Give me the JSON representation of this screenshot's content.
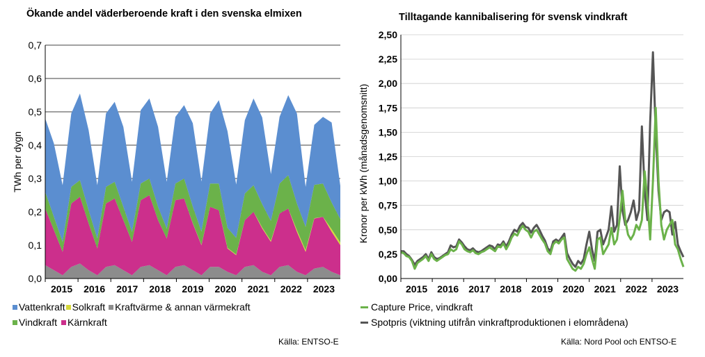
{
  "left": {
    "title": "Ökande andel väderberoende kraft i den svenska elmixen",
    "source": "Källa: ENTSO-E",
    "legend": [
      {
        "label": "Vattenkraft",
        "color": "#5b8ed0"
      },
      {
        "label": "Solkraft",
        "color": "#d6d83c"
      },
      {
        "label": "Kraftvärme & annan värmekraft",
        "color": "#8c8c8c"
      },
      {
        "label": "Vindkraft",
        "color": "#6bb24a"
      },
      {
        "label": "Kärnkraft",
        "color": "#cc2f8c"
      }
    ]
  },
  "right": {
    "title": "Tilltagande kannibalisering för svensk vindkraft",
    "source": "Källa: Nord Pool och ENTSO-E",
    "legend": [
      {
        "label": "Capture Price, vindkraft",
        "color": "#6bb24a"
      },
      {
        "label": "Spotpris (viktning utifrån vinkraftproduktionen i elområdena)",
        "color": "#555555"
      }
    ]
  },
  "chart_data": [
    {
      "type": "area",
      "stacked": true,
      "ylabel": "TWh per dygn",
      "ylim": [
        0,
        0.7
      ],
      "yticks": [
        "0,0",
        "0,1",
        "0,2",
        "0,3",
        "0,4",
        "0,5",
        "0,6",
        "0,7"
      ],
      "x_tick_labels": [
        "2015",
        "2016",
        "2017",
        "2018",
        "2019",
        "2020",
        "2021",
        "2022",
        "2023"
      ],
      "grid": true,
      "x": [
        "2015-Q1",
        "2015-Q2",
        "2015-Q3",
        "2015-Q4",
        "2016-Q1",
        "2016-Q2",
        "2016-Q3",
        "2016-Q4",
        "2017-Q1",
        "2017-Q2",
        "2017-Q3",
        "2017-Q4",
        "2018-Q1",
        "2018-Q2",
        "2018-Q3",
        "2018-Q4",
        "2019-Q1",
        "2019-Q2",
        "2019-Q3",
        "2019-Q4",
        "2020-Q1",
        "2020-Q2",
        "2020-Q3",
        "2020-Q4",
        "2021-Q1",
        "2021-Q2",
        "2021-Q3",
        "2021-Q4",
        "2022-Q1",
        "2022-Q2",
        "2022-Q3",
        "2022-Q4",
        "2023-Q1",
        "2023-Q2",
        "2023-Q3"
      ],
      "series": [
        {
          "name": "Kraftvärme & annan värmekraft",
          "values": [
            0.04,
            0.025,
            0.01,
            0.035,
            0.045,
            0.025,
            0.01,
            0.035,
            0.04,
            0.025,
            0.01,
            0.035,
            0.04,
            0.025,
            0.01,
            0.035,
            0.04,
            0.025,
            0.01,
            0.035,
            0.035,
            0.02,
            0.01,
            0.035,
            0.04,
            0.02,
            0.01,
            0.035,
            0.04,
            0.02,
            0.01,
            0.03,
            0.035,
            0.02,
            0.01
          ]
        },
        {
          "name": "Kärnkraft",
          "values": [
            0.17,
            0.12,
            0.07,
            0.19,
            0.2,
            0.14,
            0.08,
            0.19,
            0.2,
            0.15,
            0.1,
            0.2,
            0.21,
            0.15,
            0.11,
            0.2,
            0.2,
            0.14,
            0.09,
            0.18,
            0.17,
            0.07,
            0.06,
            0.14,
            0.16,
            0.13,
            0.1,
            0.16,
            0.17,
            0.12,
            0.07,
            0.15,
            0.15,
            0.12,
            0.09
          ]
        },
        {
          "name": "Solkraft",
          "values": [
            0,
            0,
            0,
            0,
            0,
            0,
            0,
            0,
            0,
            0,
            0,
            0,
            0,
            0,
            0,
            0,
            0,
            0.001,
            0.001,
            0,
            0,
            0.002,
            0.002,
            0,
            0,
            0.003,
            0.003,
            0,
            0,
            0.005,
            0.005,
            0.001,
            0,
            0.008,
            0.008
          ]
        },
        {
          "name": "Vindkraft",
          "values": [
            0.05,
            0.04,
            0.03,
            0.05,
            0.05,
            0.04,
            0.03,
            0.05,
            0.05,
            0.04,
            0.03,
            0.05,
            0.05,
            0.04,
            0.03,
            0.05,
            0.06,
            0.05,
            0.04,
            0.07,
            0.08,
            0.06,
            0.05,
            0.08,
            0.08,
            0.07,
            0.06,
            0.09,
            0.1,
            0.08,
            0.07,
            0.1,
            0.1,
            0.08,
            0.07
          ]
        },
        {
          "name": "Vattenkraft",
          "values": [
            0.22,
            0.22,
            0.17,
            0.22,
            0.26,
            0.24,
            0.16,
            0.22,
            0.24,
            0.24,
            0.15,
            0.22,
            0.24,
            0.24,
            0.14,
            0.2,
            0.22,
            0.25,
            0.15,
            0.21,
            0.25,
            0.29,
            0.16,
            0.22,
            0.26,
            0.26,
            0.14,
            0.2,
            0.24,
            0.27,
            0.12,
            0.18,
            0.2,
            0.24,
            0.1
          ]
        }
      ]
    },
    {
      "type": "line",
      "ylabel": "Kronor per kWh (månadsgenomsnitt)",
      "ylim": [
        0,
        2.5
      ],
      "yticks": [
        "0,00",
        "0,25",
        "0,50",
        "0,75",
        "1,00",
        "1,25",
        "1,50",
        "1,75",
        "2,00",
        "2,25",
        "2,50"
      ],
      "x_tick_labels": [
        "2015",
        "2016",
        "2017",
        "2018",
        "2019",
        "2020",
        "2021",
        "2022",
        "2023"
      ],
      "grid": true,
      "x_start": "2015-01",
      "x_step": "month",
      "series": [
        {
          "name": "Capture Price, vindkraft",
          "values": [
            0.27,
            0.26,
            0.23,
            0.22,
            0.18,
            0.1,
            0.16,
            0.18,
            0.2,
            0.23,
            0.18,
            0.25,
            0.2,
            0.18,
            0.2,
            0.22,
            0.24,
            0.25,
            0.3,
            0.28,
            0.3,
            0.38,
            0.35,
            0.3,
            0.28,
            0.27,
            0.29,
            0.26,
            0.25,
            0.27,
            0.28,
            0.3,
            0.32,
            0.3,
            0.28,
            0.33,
            0.32,
            0.36,
            0.3,
            0.35,
            0.42,
            0.46,
            0.44,
            0.5,
            0.54,
            0.5,
            0.48,
            0.42,
            0.48,
            0.5,
            0.45,
            0.4,
            0.36,
            0.28,
            0.25,
            0.35,
            0.38,
            0.36,
            0.4,
            0.42,
            0.2,
            0.15,
            0.1,
            0.08,
            0.12,
            0.1,
            0.15,
            0.25,
            0.32,
            0.2,
            0.1,
            0.4,
            0.42,
            0.25,
            0.3,
            0.35,
            0.52,
            0.35,
            0.4,
            0.62,
            0.9,
            0.6,
            0.45,
            0.4,
            0.45,
            0.55,
            0.5,
            0.6,
            1.1,
            0.8,
            0.4,
            1.0,
            1.75,
            1.0,
            0.55,
            0.4,
            0.5,
            0.55,
            0.6,
            0.35,
            0.3,
            0.2,
            0.12
          ]
        },
        {
          "name": "Spotpris (viktning utifrån vinkraftproduktionen i elområdena)",
          "values": [
            0.28,
            0.28,
            0.25,
            0.23,
            0.19,
            0.14,
            0.18,
            0.2,
            0.22,
            0.25,
            0.2,
            0.27,
            0.22,
            0.2,
            0.21,
            0.23,
            0.25,
            0.27,
            0.34,
            0.32,
            0.33,
            0.4,
            0.37,
            0.33,
            0.3,
            0.29,
            0.31,
            0.28,
            0.27,
            0.28,
            0.3,
            0.32,
            0.34,
            0.33,
            0.3,
            0.35,
            0.34,
            0.38,
            0.33,
            0.38,
            0.45,
            0.5,
            0.48,
            0.54,
            0.57,
            0.53,
            0.52,
            0.47,
            0.52,
            0.55,
            0.5,
            0.44,
            0.39,
            0.31,
            0.28,
            0.38,
            0.4,
            0.38,
            0.42,
            0.46,
            0.26,
            0.2,
            0.15,
            0.12,
            0.18,
            0.15,
            0.2,
            0.35,
            0.48,
            0.3,
            0.18,
            0.48,
            0.5,
            0.35,
            0.42,
            0.5,
            0.74,
            0.48,
            0.55,
            1.15,
            0.7,
            0.55,
            0.6,
            0.68,
            0.8,
            0.6,
            0.7,
            1.56,
            0.9,
            0.6,
            1.6,
            2.32,
            1.5,
            0.9,
            0.6,
            0.68,
            0.7,
            0.68,
            0.45,
            0.58,
            0.35,
            0.28,
            0.22
          ]
        }
      ]
    }
  ]
}
